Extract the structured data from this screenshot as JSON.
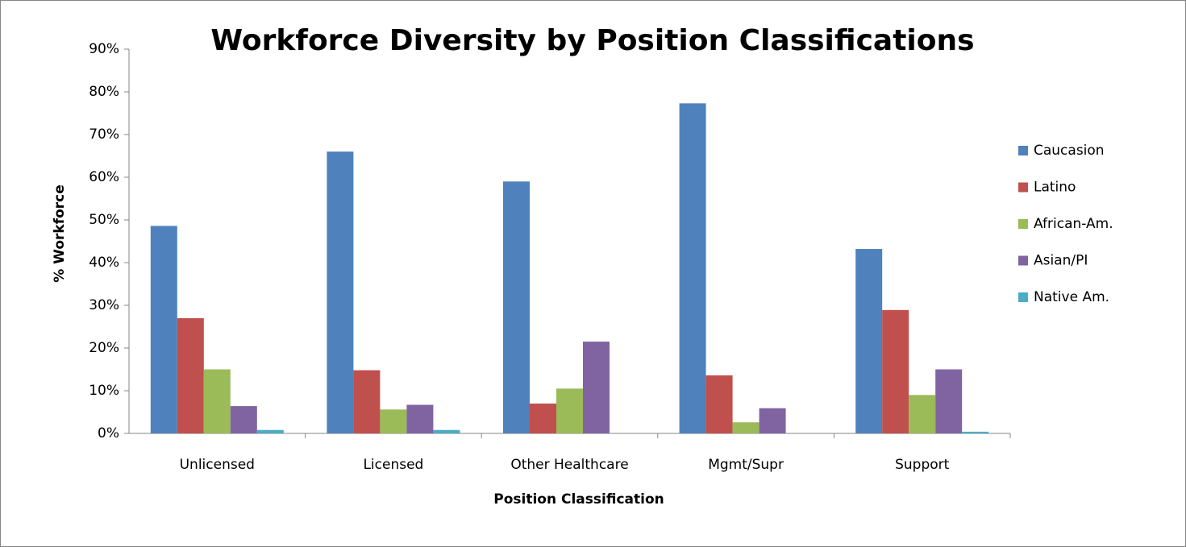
{
  "chart_data": {
    "type": "bar",
    "title": "Workforce Diversity by Position Classifications",
    "xlabel": "Position Classification",
    "ylabel": "% Workforce",
    "categories": [
      "Unlicensed",
      "Licensed",
      "Other Healthcare",
      "Mgmt/Supr",
      "Support"
    ],
    "series": [
      {
        "name": "Caucasion",
        "color": "#4f81bd",
        "values": [
          48.6,
          66,
          59,
          77.3,
          43.2
        ]
      },
      {
        "name": "Latino",
        "color": "#c0504d",
        "values": [
          27,
          14.8,
          7,
          13.6,
          28.9
        ]
      },
      {
        "name": "African-Am.",
        "color": "#9bbb59",
        "values": [
          15,
          5.6,
          10.5,
          2.6,
          9
        ]
      },
      {
        "name": "Asian/PI",
        "color": "#8064a2",
        "values": [
          6.4,
          6.7,
          21.5,
          5.9,
          15
        ]
      },
      {
        "name": "Native Am.",
        "color": "#4bacc6",
        "values": [
          0.8,
          0.8,
          0,
          0,
          0.4
        ]
      }
    ],
    "ylim": [
      0,
      90
    ],
    "yticks": [
      {
        "value": 0,
        "label": "0%"
      },
      {
        "value": 10,
        "label": "10%"
      },
      {
        "value": 20,
        "label": "20%"
      },
      {
        "value": 30,
        "label": "30%"
      },
      {
        "value": 40,
        "label": "40%"
      },
      {
        "value": 50,
        "label": "50%"
      },
      {
        "value": 60,
        "label": "60%"
      },
      {
        "value": 70,
        "label": "70%"
      },
      {
        "value": 80,
        "label": "80%"
      },
      {
        "value": 90,
        "label": "90%"
      }
    ],
    "grid": false,
    "legend": "right"
  }
}
